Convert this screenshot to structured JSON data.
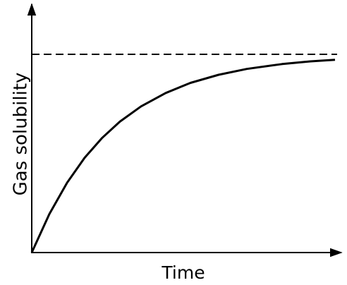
{
  "axes": {
    "y_label": "Gas solubility",
    "x_label": "Time"
  }
}
